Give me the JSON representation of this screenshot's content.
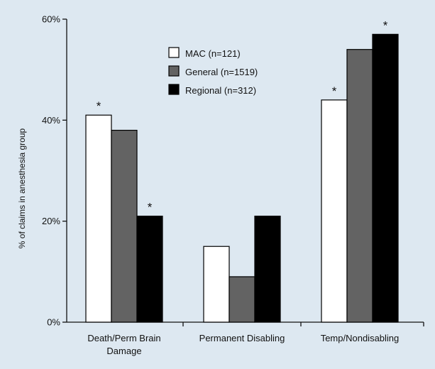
{
  "chart_data": {
    "type": "bar",
    "title": "",
    "xlabel": "",
    "ylabel": "% of claims in anesthesia group",
    "ylim": [
      0,
      60
    ],
    "yticks": [
      0,
      20,
      40,
      60
    ],
    "ytick_labels": [
      "0%",
      "20%",
      "40%",
      "60%"
    ],
    "grid": false,
    "legend_position": "top-center",
    "categories": [
      [
        "Death/Perm Brain",
        "Damage"
      ],
      [
        "Permanent Disabling"
      ],
      [
        "Temp/Nondisabling"
      ]
    ],
    "series": [
      {
        "name": "MAC (n=121)",
        "values": [
          41,
          15,
          44
        ],
        "color": "#ffffff",
        "significant": [
          true,
          false,
          true
        ]
      },
      {
        "name": "General (n=1519)",
        "values": [
          38,
          9,
          54
        ],
        "color": "#636363",
        "significant": [
          false,
          false,
          false
        ]
      },
      {
        "name": "Regional (n=312)",
        "values": [
          21,
          21,
          57
        ],
        "color": "#000000",
        "significant": [
          true,
          false,
          true
        ]
      }
    ],
    "significance_marker": "*"
  }
}
